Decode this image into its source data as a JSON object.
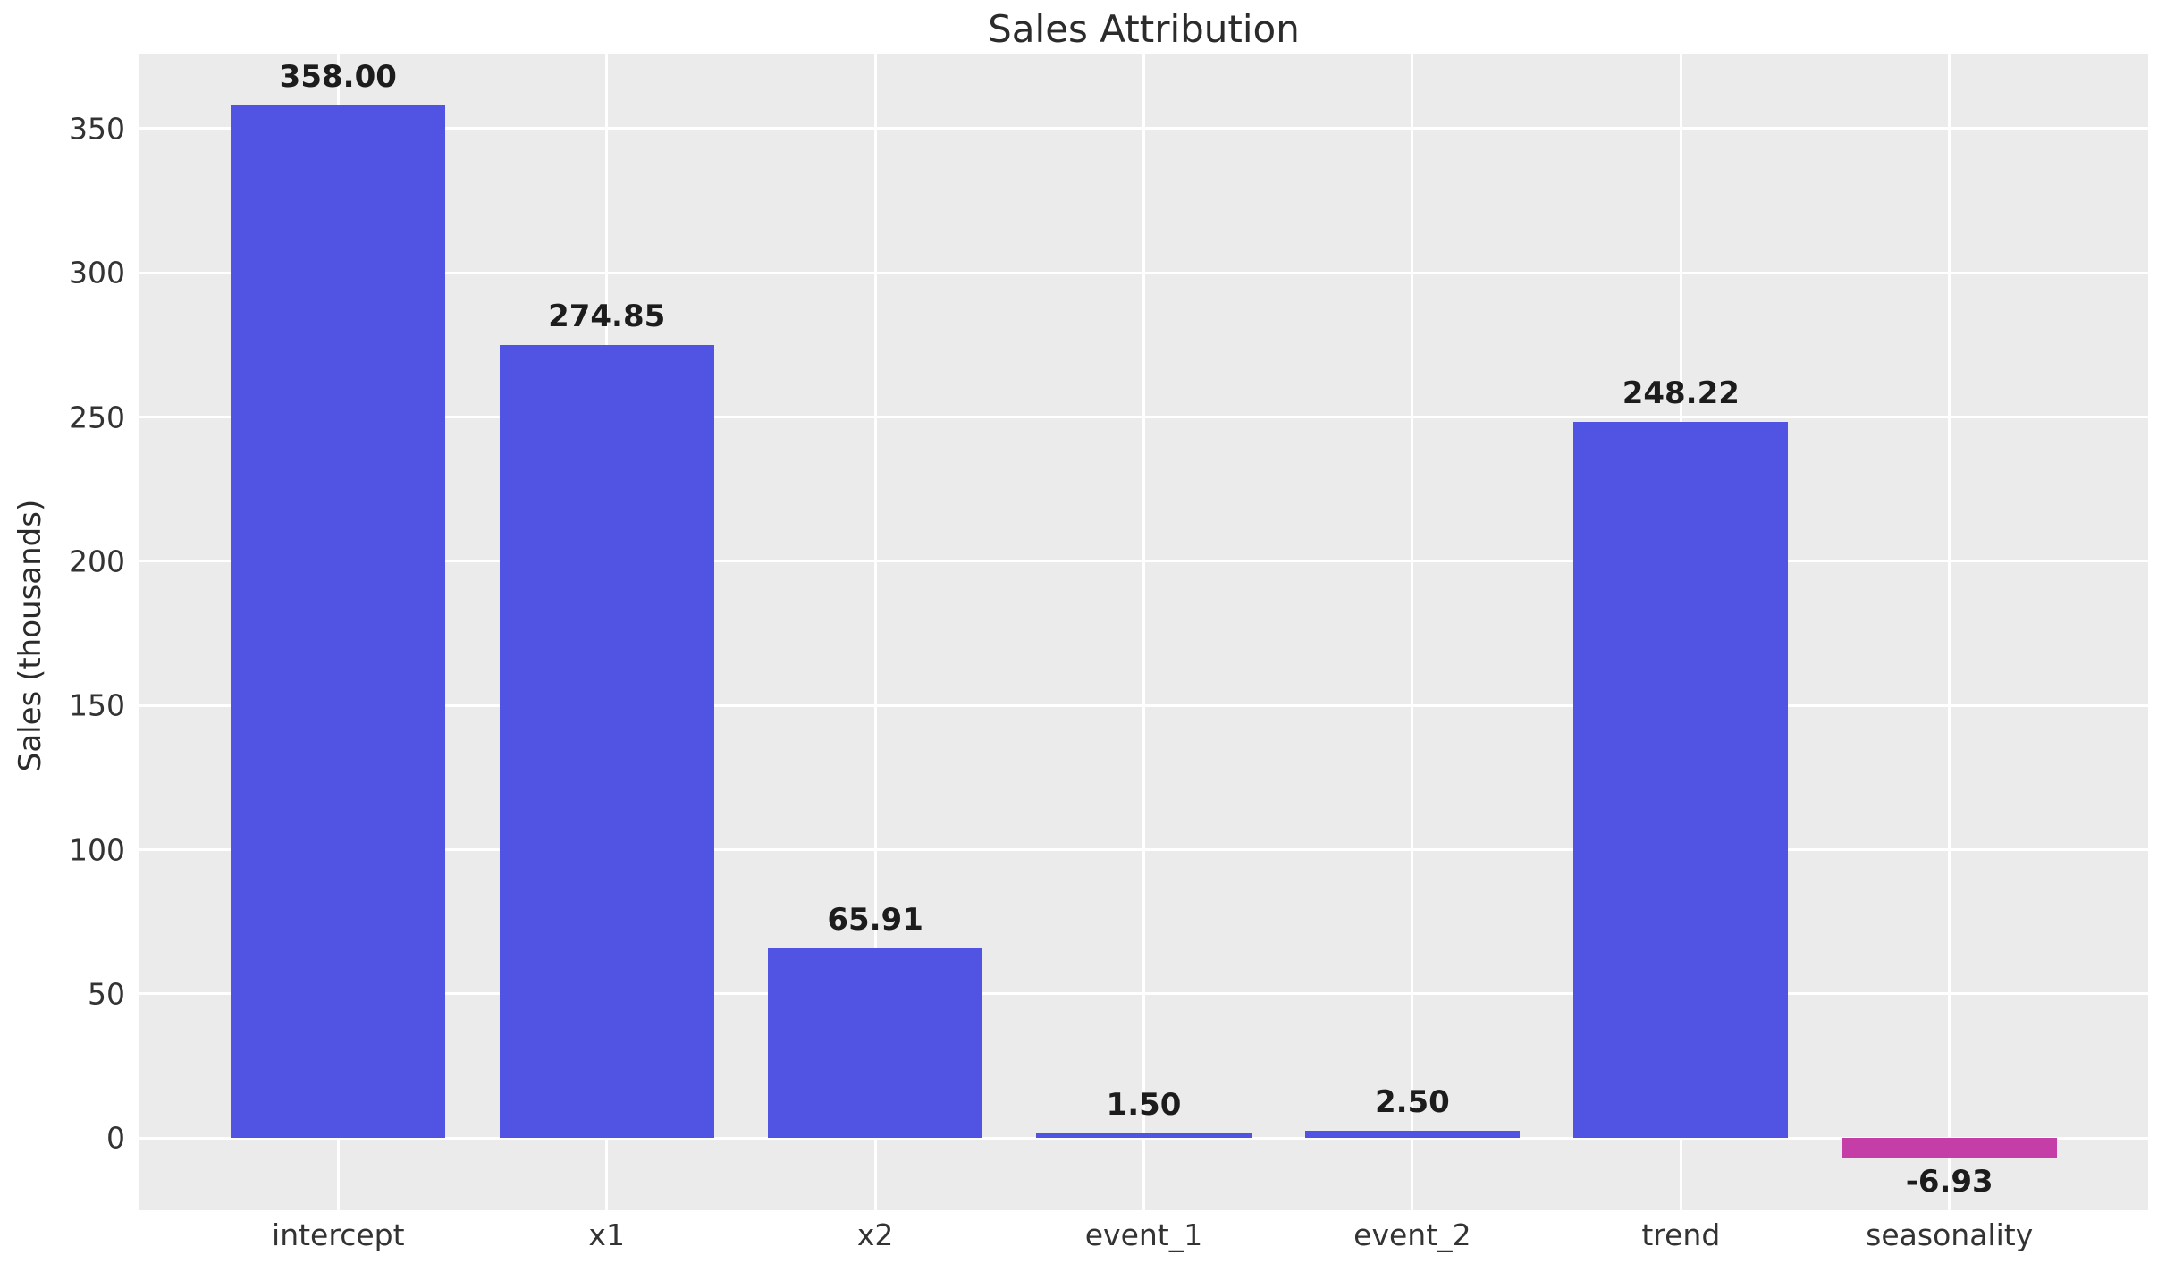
{
  "chart_data": {
    "type": "bar",
    "title": "Sales Attribution",
    "xlabel": "",
    "ylabel": "Sales (thousands)",
    "categories": [
      "intercept",
      "x1",
      "x2",
      "event_1",
      "event_2",
      "trend",
      "seasonality"
    ],
    "values": [
      358.0,
      274.85,
      65.91,
      1.5,
      2.5,
      248.22,
      -6.93
    ],
    "value_labels": [
      "358.00",
      "274.85",
      "65.91",
      "1.50",
      "2.50",
      "248.22",
      "-6.93"
    ],
    "yticks": [
      0,
      50,
      100,
      150,
      200,
      250,
      300,
      350
    ],
    "ylim": [
      -25,
      376
    ],
    "grid": "on",
    "legend": "none",
    "colors": {
      "bar_positive": "#5153e3",
      "bar_negative": "#c53ea8",
      "plot_background": "#ebebeb",
      "figure_background": "#ffffff",
      "gridline": "#ffffff",
      "text": "#2b2b2b"
    }
  }
}
